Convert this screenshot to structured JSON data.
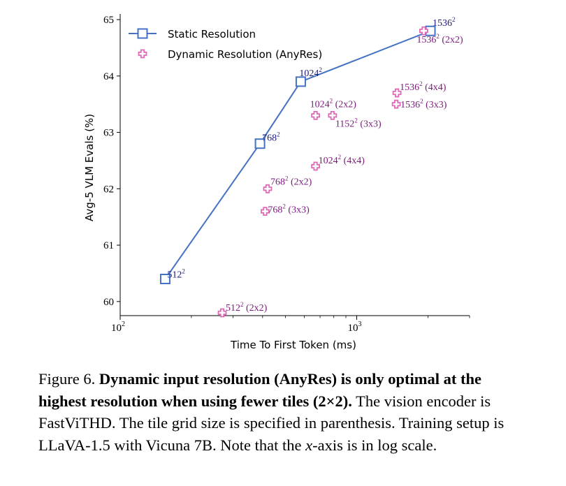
{
  "chart_data": {
    "type": "scatter",
    "xlabel": "Time To First Token (ms)",
    "ylabel": "Avg-5 VLM Evals (%)",
    "xscale": "log",
    "xlim": [
      100,
      3000
    ],
    "ylim": [
      59.75,
      65.1
    ],
    "x_ticks": [
      {
        "value": 100,
        "base": "10",
        "exp": "2"
      },
      {
        "value": 1000,
        "base": "10",
        "exp": "3"
      }
    ],
    "y_ticks": [
      60,
      61,
      62,
      63,
      64,
      65
    ],
    "legend_position": "top-left",
    "grid": false,
    "series": [
      {
        "name": "Static Resolution",
        "style": "line-square",
        "color": "#4472c4",
        "label_color": "#1a1a7a",
        "points": [
          {
            "x": 155,
            "y": 60.4,
            "res": "512",
            "tiles": ""
          },
          {
            "x": 390,
            "y": 62.8,
            "res": "768",
            "tiles": ""
          },
          {
            "x": 580,
            "y": 63.9,
            "res": "1024",
            "tiles": ""
          },
          {
            "x": 2050,
            "y": 64.8,
            "res": "1536",
            "tiles": ""
          }
        ]
      },
      {
        "name": "Dynamic Resolution (AnyRes)",
        "style": "plus",
        "color": "#e06ab8",
        "label_color": "#7a1a7a",
        "points": [
          {
            "x": 270,
            "y": 59.8,
            "res": "512",
            "tiles": "(2x2)"
          },
          {
            "x": 420,
            "y": 62.0,
            "res": "768",
            "tiles": "(2x2)"
          },
          {
            "x": 410,
            "y": 61.6,
            "res": "768",
            "tiles": "(3x3)"
          },
          {
            "x": 670,
            "y": 63.3,
            "res": "1024",
            "tiles": "(2x2)"
          },
          {
            "x": 670,
            "y": 62.4,
            "res": "1024",
            "tiles": "(4x4)"
          },
          {
            "x": 790,
            "y": 63.3,
            "res": "1152",
            "tiles": "(3x3)"
          },
          {
            "x": 1480,
            "y": 63.7,
            "res": "1536",
            "tiles": "(4x4)"
          },
          {
            "x": 1470,
            "y": 63.5,
            "res": "1536",
            "tiles": "(3x3)"
          },
          {
            "x": 1920,
            "y": 64.8,
            "res": "1536",
            "tiles": "(2x2)"
          }
        ]
      }
    ]
  },
  "caption": {
    "label": "Figure 6.",
    "bold": "Dynamic input resolution (AnyRes) is only optimal at the highest resolution when using fewer tiles (2×2).",
    "text1": "The vision encoder is FastViTHD. The tile grid size is specified in parenthesis.  Training setup is LLaVA-1.5 with Vicuna 7B. Note that the",
    "var": "x",
    "text2": "-axis is in log scale."
  }
}
